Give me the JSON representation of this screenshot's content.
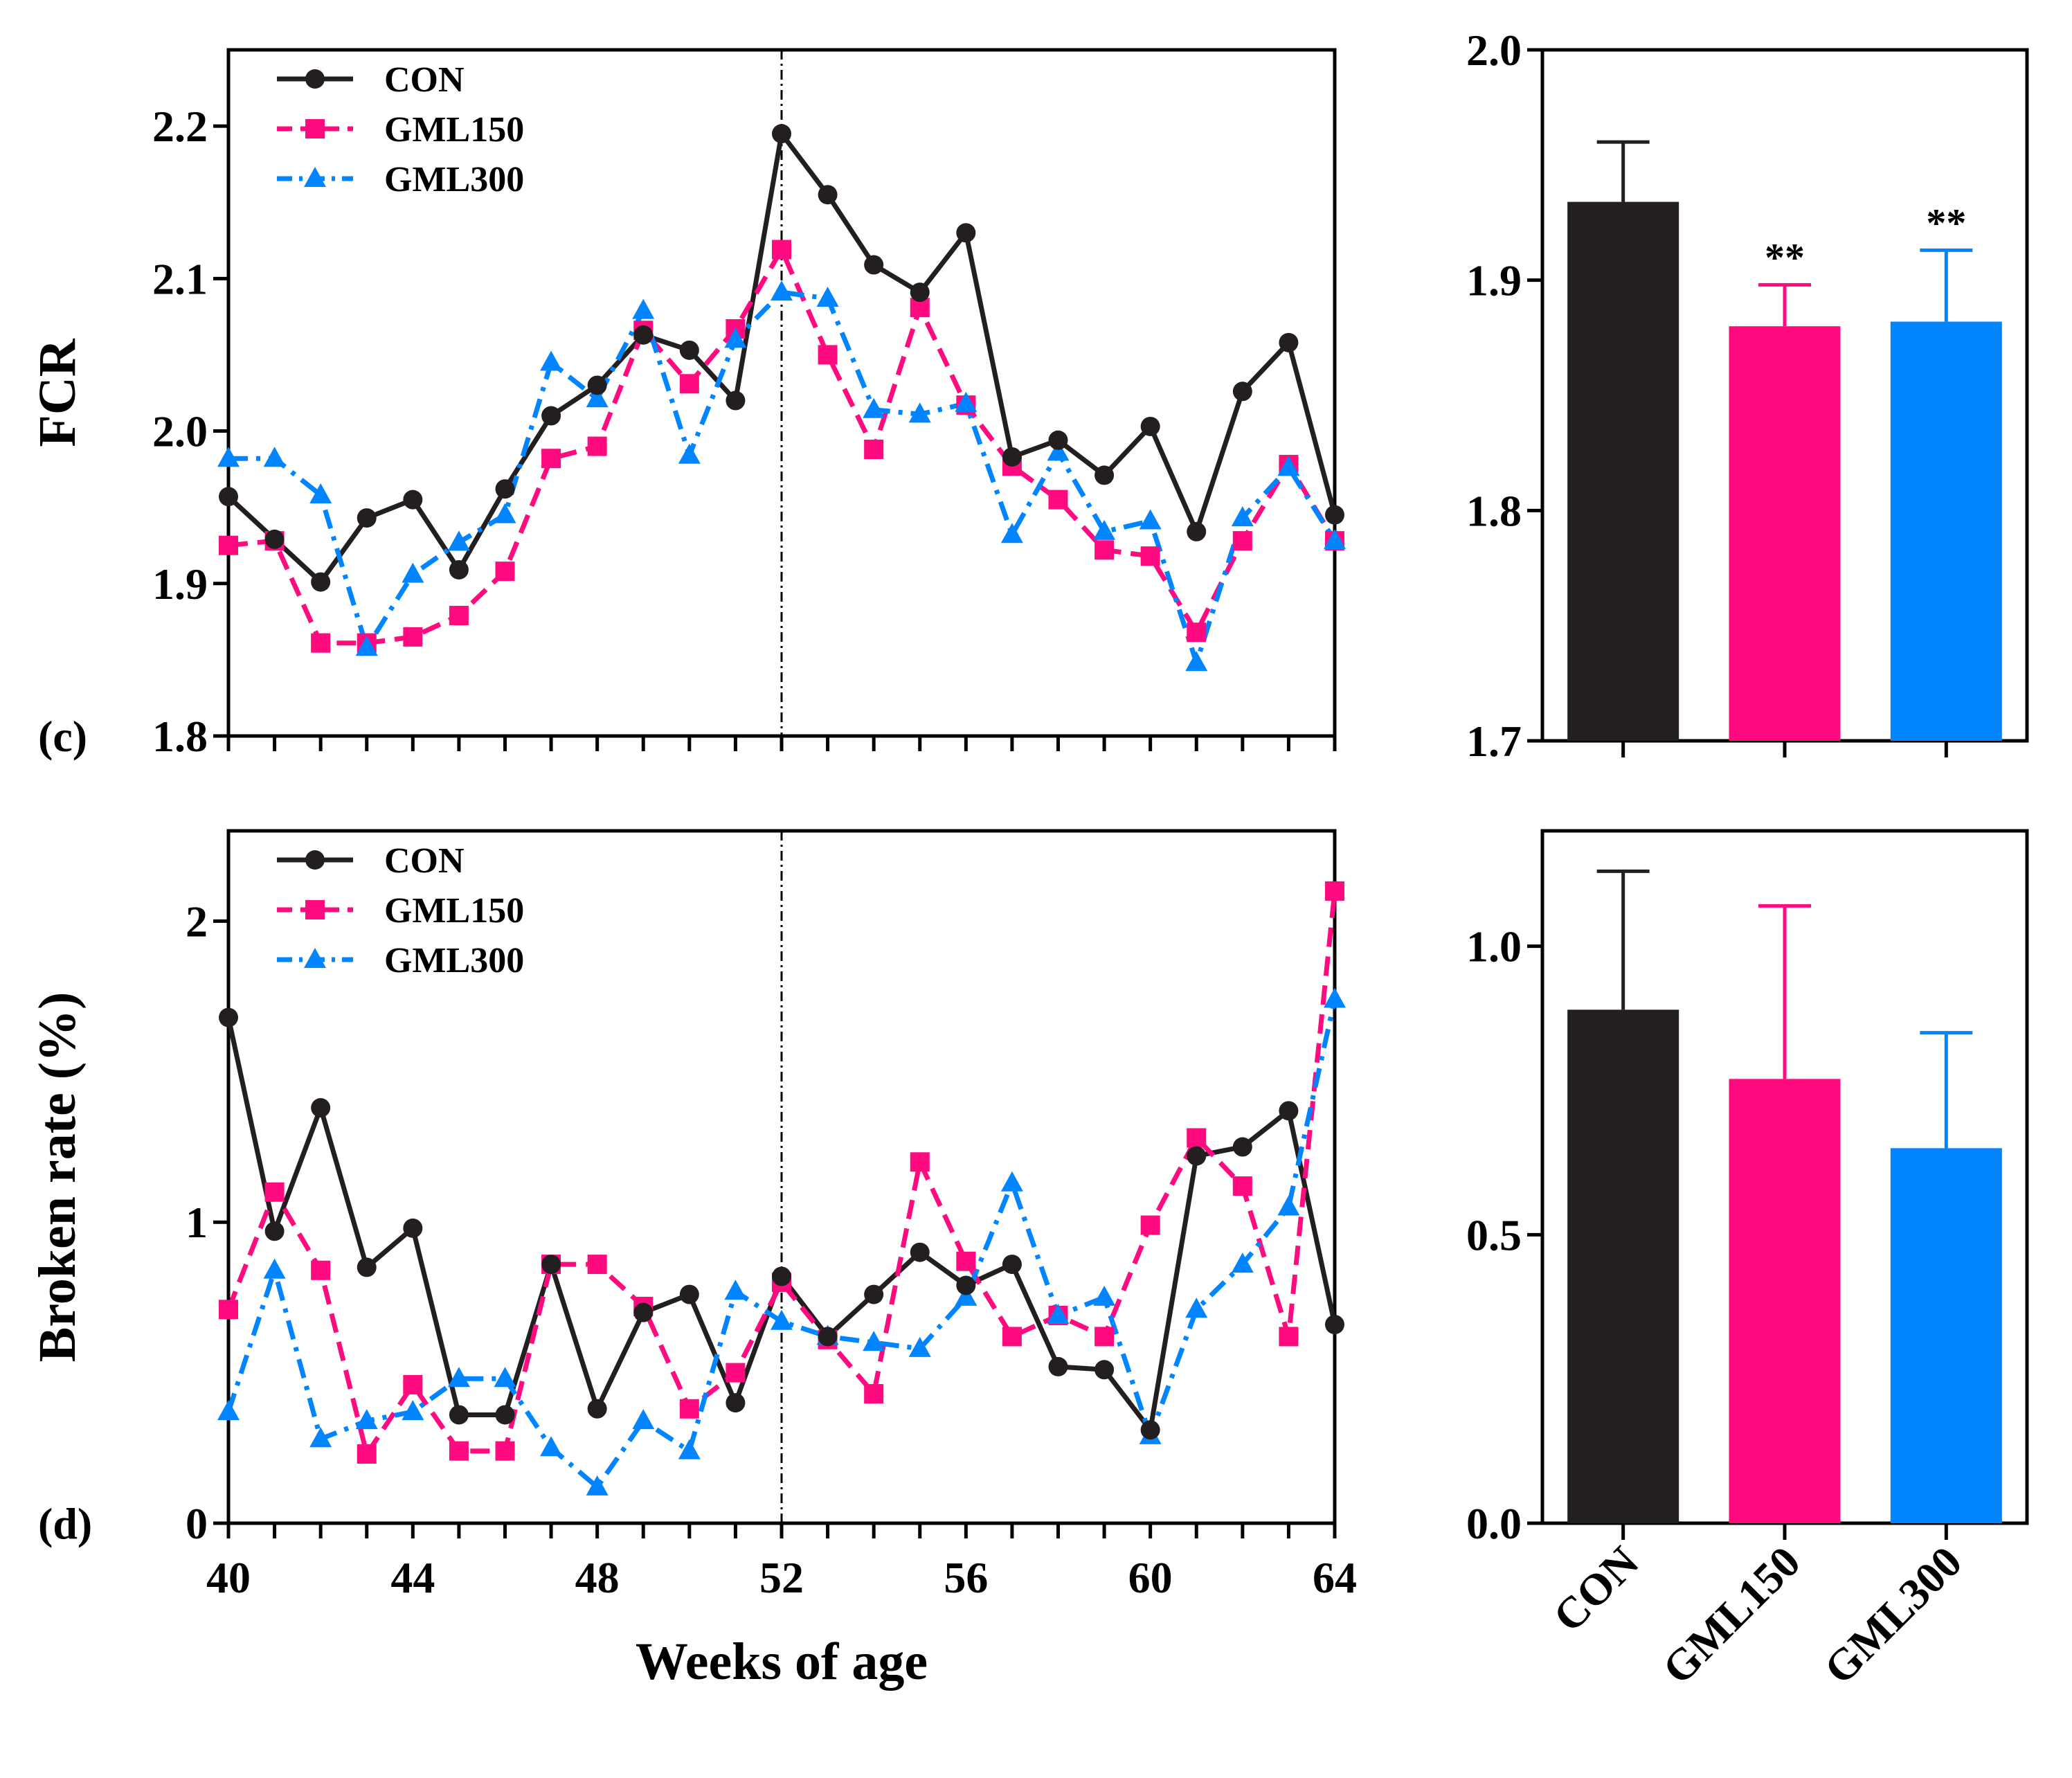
{
  "colors": {
    "CON": "#231f20",
    "GML150": "#ff0a7f",
    "GML300": "#0084ff"
  },
  "chart_data": [
    {
      "type": "line",
      "panel_label": "(c)",
      "ylabel": "FCR",
      "xlabel": "",
      "xlim": [
        40,
        64
      ],
      "ylim": [
        1.8,
        2.25
      ],
      "yticks": [
        1.8,
        1.9,
        2.0,
        2.1,
        2.2
      ],
      "ytick_labels": [
        "1.8",
        "1.9",
        "2.0",
        "2.1",
        "2.2"
      ],
      "vline_x": 52,
      "legend": [
        "CON",
        "GML150",
        "GML300"
      ],
      "legend_position": "top-left",
      "x": [
        40,
        41,
        42,
        43,
        44,
        45,
        46,
        47,
        48,
        49,
        50,
        51,
        52,
        53,
        54,
        55,
        56,
        57,
        58,
        59,
        60,
        61,
        62,
        63,
        64
      ],
      "series": [
        {
          "name": "CON",
          "style": "solid",
          "marker": "circle",
          "values": [
            1.957,
            1.929,
            1.901,
            1.943,
            1.955,
            1.909,
            1.962,
            2.01,
            2.03,
            2.063,
            2.053,
            2.02,
            2.195,
            2.155,
            2.109,
            2.091,
            2.13,
            1.983,
            1.994,
            1.971,
            2.003,
            1.934,
            2.026,
            2.058,
            1.945
          ]
        },
        {
          "name": "GML150",
          "style": "dashed",
          "marker": "square",
          "values": [
            1.925,
            1.928,
            1.861,
            1.861,
            1.865,
            1.879,
            1.908,
            1.982,
            1.99,
            2.066,
            2.031,
            2.067,
            2.119,
            2.05,
            1.988,
            2.081,
            2.017,
            1.977,
            1.955,
            1.922,
            1.918,
            1.868,
            1.928,
            1.978,
            1.928
          ]
        },
        {
          "name": "GML300",
          "style": "dashdot",
          "marker": "triangle",
          "values": [
            1.982,
            1.982,
            1.958,
            1.858,
            1.906,
            1.927,
            1.945,
            2.045,
            2.021,
            2.079,
            1.984,
            2.06,
            2.091,
            2.087,
            2.014,
            2.011,
            2.018,
            1.932,
            1.986,
            1.934,
            1.941,
            1.848,
            1.943,
            1.976,
            1.928
          ]
        }
      ]
    },
    {
      "type": "bar",
      "ylabel": "",
      "categories": [
        "CON",
        "GML150",
        "GML300"
      ],
      "values": [
        1.934,
        1.88,
        1.882
      ],
      "errors": [
        0.026,
        0.018,
        0.031
      ],
      "significance": [
        "",
        "**",
        "**"
      ],
      "ylim": [
        1.7,
        2.0
      ],
      "yticks": [
        1.7,
        1.8,
        1.9,
        2.0
      ],
      "ytick_labels": [
        "1.7",
        "1.8",
        "1.9",
        "2.0"
      ]
    },
    {
      "type": "line",
      "panel_label": "(d)",
      "ylabel": "Broken rate (%)",
      "xlabel": "Weeks of age",
      "xlim": [
        40,
        64
      ],
      "ylim": [
        0,
        2.3
      ],
      "yticks": [
        0,
        1,
        2
      ],
      "ytick_labels": [
        "0",
        "1",
        "2"
      ],
      "xticks": [
        40,
        44,
        48,
        52,
        56,
        60,
        64
      ],
      "xtick_labels": [
        "40",
        "44",
        "48",
        "52",
        "56",
        "60",
        "64"
      ],
      "vline_x": 52,
      "legend": [
        "CON",
        "GML150",
        "GML300"
      ],
      "legend_position": "top-left",
      "x": [
        40,
        41,
        42,
        43,
        44,
        45,
        46,
        47,
        48,
        49,
        50,
        51,
        52,
        53,
        54,
        55,
        56,
        57,
        58,
        59,
        60,
        61,
        62,
        63,
        64
      ],
      "series": [
        {
          "name": "CON",
          "style": "solid",
          "marker": "circle",
          "values": [
            1.68,
            0.97,
            1.38,
            0.85,
            0.98,
            0.36,
            0.36,
            0.86,
            0.38,
            0.7,
            0.76,
            0.4,
            0.82,
            0.62,
            0.76,
            0.9,
            0.79,
            0.86,
            0.52,
            0.51,
            0.31,
            1.22,
            1.25,
            1.37,
            0.66
          ]
        },
        {
          "name": "GML150",
          "style": "dashed",
          "marker": "square",
          "values": [
            0.71,
            1.1,
            0.84,
            0.23,
            0.46,
            0.24,
            0.24,
            0.86,
            0.86,
            0.72,
            0.38,
            0.5,
            0.8,
            0.61,
            0.43,
            1.2,
            0.87,
            0.62,
            0.69,
            0.62,
            0.99,
            1.28,
            1.12,
            0.62,
            2.1
          ]
        },
        {
          "name": "GML300",
          "style": "dashdot",
          "marker": "triangle",
          "values": [
            0.37,
            0.84,
            0.28,
            0.34,
            0.37,
            0.48,
            0.48,
            0.25,
            0.12,
            0.34,
            0.24,
            0.77,
            0.67,
            0.62,
            0.6,
            0.58,
            0.75,
            1.13,
            0.69,
            0.75,
            0.29,
            0.71,
            0.86,
            1.05,
            1.74
          ]
        }
      ]
    },
    {
      "type": "bar",
      "ylabel": "",
      "categories": [
        "CON",
        "GML150",
        "GML300"
      ],
      "values": [
        0.89,
        0.77,
        0.65
      ],
      "errors": [
        0.24,
        0.3,
        0.2
      ],
      "significance": [
        "",
        "",
        ""
      ],
      "ylim": [
        0,
        1.2
      ],
      "yticks": [
        0,
        0.5,
        1.0
      ],
      "ytick_labels": [
        "0.0",
        "0.5",
        "1.0"
      ],
      "xtick_labels": [
        "CON",
        "GML150",
        "GML300"
      ]
    }
  ]
}
